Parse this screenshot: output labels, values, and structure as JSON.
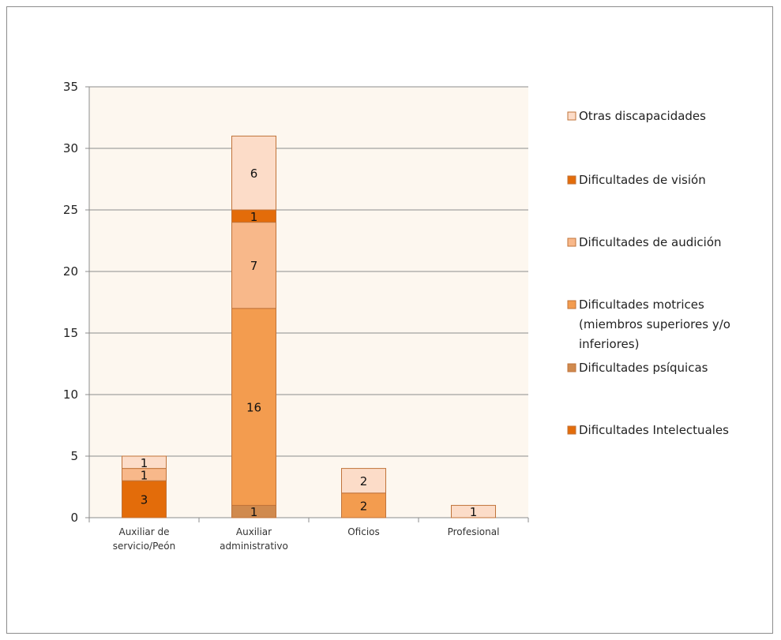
{
  "chart_data": {
    "type": "bar",
    "stacked": true,
    "title": "",
    "xlabel": "",
    "ylabel": "",
    "ylim": [
      0,
      35
    ],
    "yticks": [
      0,
      5,
      10,
      15,
      20,
      25,
      30,
      35
    ],
    "grid": true,
    "legend_position": "right",
    "categories": [
      [
        "Auxiliar de",
        "servicio/Peón"
      ],
      [
        "Auxiliar",
        "administrativo"
      ],
      [
        "Oficios"
      ],
      [
        "Profesional"
      ]
    ],
    "series": [
      {
        "name": "Dificultades Intelectuales",
        "legend_lines": [
          "Dificultades Intelectuales"
        ],
        "color": "#E36C0A",
        "values": [
          3,
          0,
          0,
          0
        ]
      },
      {
        "name": "Dificultades psíquicas",
        "legend_lines": [
          "Dificultades psíquicas"
        ],
        "color": "#D08A4E",
        "values": [
          0,
          1,
          0,
          0
        ]
      },
      {
        "name": "Dificultades motrices (miembros superiores y/o inferiores)",
        "legend_lines": [
          "Dificultades motrices",
          "(miembros superiores y/o",
          "inferiores)"
        ],
        "color": "#F39C4F",
        "values": [
          0,
          16,
          2,
          0
        ]
      },
      {
        "name": "Dificultades de audición",
        "legend_lines": [
          "Dificultades de audición"
        ],
        "color": "#F8B88A",
        "values": [
          1,
          7,
          0,
          0
        ]
      },
      {
        "name": "Dificultades de visión",
        "legend_lines": [
          "Dificultades de visión"
        ],
        "color": "#E36C0A",
        "values": [
          0,
          1,
          0,
          0
        ]
      },
      {
        "name": "Otras discapacidades",
        "legend_lines": [
          "Otras discapacidades"
        ],
        "color": "#FCDCC8",
        "values": [
          1,
          6,
          2,
          1
        ]
      }
    ],
    "colors": {
      "plot_background": "#FDF7EF",
      "gridline": "#8C8C8C",
      "bar_outline": "#C0733A"
    }
  }
}
